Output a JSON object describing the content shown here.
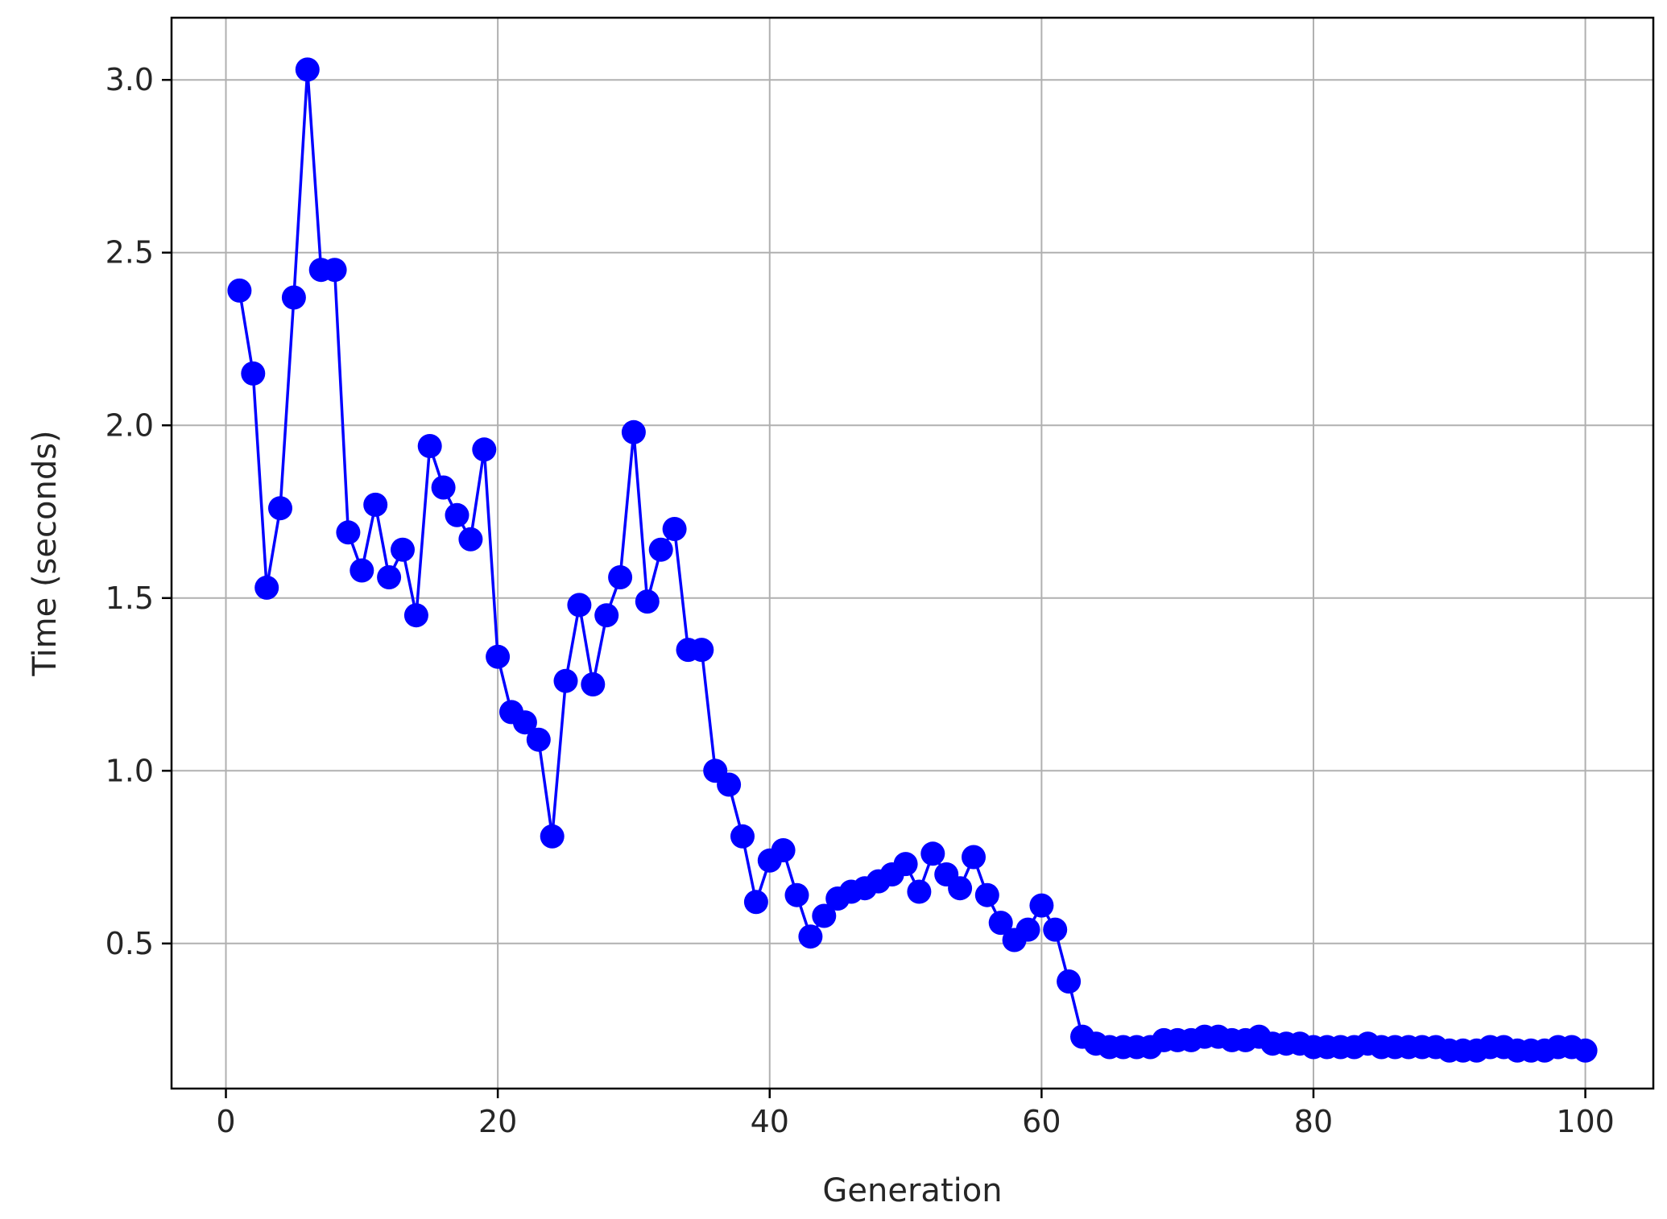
{
  "chart_data": {
    "type": "line",
    "title": "",
    "xlabel": "Generation",
    "ylabel": "Time (seconds)",
    "xlim": [
      -4,
      105
    ],
    "ylim": [
      0.08,
      3.18
    ],
    "xticks": [
      0,
      20,
      40,
      60,
      80,
      100
    ],
    "yticks": [
      0.5,
      1.0,
      1.5,
      2.0,
      2.5,
      3.0
    ],
    "grid": true,
    "legend": "none",
    "color": "#0000ff",
    "marker": "circle",
    "series": [
      {
        "x": [
          1,
          2,
          3,
          4,
          5,
          6,
          7,
          8,
          9,
          10,
          11,
          12,
          13,
          14,
          15,
          16,
          17,
          18,
          19,
          20,
          21,
          22,
          23,
          24,
          25,
          26,
          27,
          28,
          29,
          30,
          31,
          32,
          33,
          34,
          35,
          36,
          37,
          38,
          39,
          40,
          41,
          42,
          43,
          44,
          45,
          46,
          47,
          48,
          49,
          50,
          51,
          52,
          53,
          54,
          55,
          56,
          57,
          58,
          59,
          60,
          61,
          62,
          63,
          64,
          65,
          66,
          67,
          68,
          69,
          70,
          71,
          72,
          73,
          74,
          75,
          76,
          77,
          78,
          79,
          80,
          81,
          82,
          83,
          84,
          85,
          86,
          87,
          88,
          89,
          90,
          91,
          92,
          93,
          94,
          95,
          96,
          97,
          98,
          99,
          100
        ],
        "values": [
          2.39,
          2.15,
          1.53,
          1.76,
          2.37,
          3.03,
          2.45,
          2.45,
          1.69,
          1.58,
          1.77,
          1.56,
          1.64,
          1.45,
          1.94,
          1.82,
          1.74,
          1.67,
          1.93,
          1.33,
          1.17,
          1.14,
          1.09,
          0.81,
          1.26,
          1.48,
          1.25,
          1.45,
          1.56,
          1.98,
          1.49,
          1.64,
          1.7,
          1.35,
          1.35,
          1.0,
          0.96,
          0.81,
          0.62,
          0.74,
          0.77,
          0.64,
          0.52,
          0.58,
          0.63,
          0.65,
          0.66,
          0.68,
          0.7,
          0.73,
          0.65,
          0.76,
          0.7,
          0.66,
          0.75,
          0.64,
          0.56,
          0.51,
          0.54,
          0.61,
          0.54,
          0.39,
          0.23,
          0.21,
          0.2,
          0.2,
          0.2,
          0.2,
          0.22,
          0.22,
          0.22,
          0.23,
          0.23,
          0.22,
          0.22,
          0.23,
          0.21,
          0.21,
          0.21,
          0.2,
          0.2,
          0.2,
          0.2,
          0.21,
          0.2,
          0.2,
          0.2,
          0.2,
          0.2,
          0.19,
          0.19,
          0.19,
          0.2,
          0.2,
          0.19,
          0.19,
          0.19,
          0.2,
          0.2,
          0.19
        ]
      }
    ]
  }
}
